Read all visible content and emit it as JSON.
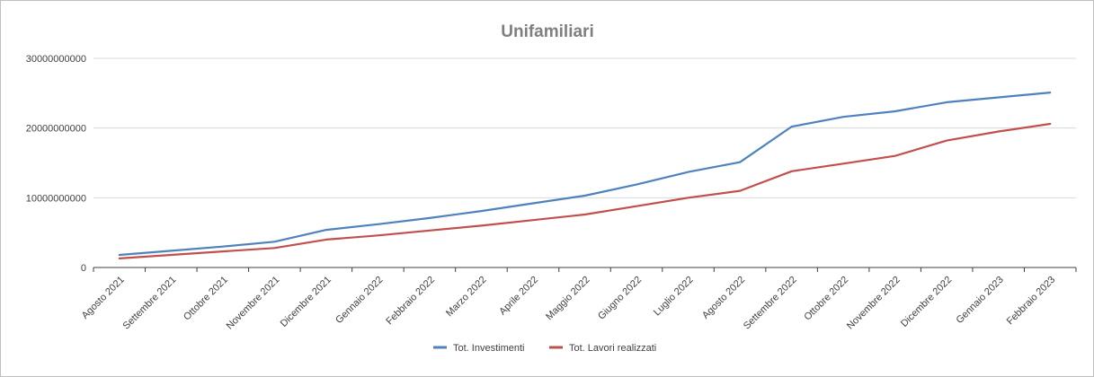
{
  "chart_data": {
    "type": "line",
    "title": "Unifamiliari",
    "xlabel": "",
    "ylabel": "",
    "ylim": [
      0,
      30000000000
    ],
    "yticks": [
      "0",
      "10000000000",
      "20000000000",
      "30000000000"
    ],
    "grid": true,
    "legend_position": "bottom",
    "categories": [
      "Agosto 2021",
      "Settembre 2021",
      "Ottobre 2021",
      "Novembre 2021",
      "Dicembre 2021",
      "Gennaio 2022",
      "Febbraio 2022",
      "Marzo 2022",
      "Aprile 2022",
      "Maggio 2022",
      "Giugno 2022",
      "Luglio 2022",
      "Agosto 2022",
      "Settembre 2022",
      "Ottobre 2022",
      "Novembre 2022",
      "Dicembre 2022",
      "Gennaio 2023",
      "Febbraio 2023"
    ],
    "series": [
      {
        "name": "Tot. Investimenti",
        "color": "#4f81bd",
        "values": [
          1800000000,
          2400000000,
          3000000000,
          3700000000,
          5400000000,
          6200000000,
          7100000000,
          8100000000,
          9200000000,
          10300000000,
          11900000000,
          13700000000,
          15100000000,
          20200000000,
          21600000000,
          22400000000,
          23700000000,
          24400000000,
          25100000000
        ]
      },
      {
        "name": "Tot. Lavori realizzati",
        "color": "#c0504d",
        "values": [
          1300000000,
          1800000000,
          2300000000,
          2800000000,
          4000000000,
          4600000000,
          5300000000,
          6000000000,
          6800000000,
          7600000000,
          8800000000,
          10000000000,
          11000000000,
          13800000000,
          14900000000,
          16000000000,
          18200000000,
          19500000000,
          20600000000
        ]
      }
    ]
  }
}
